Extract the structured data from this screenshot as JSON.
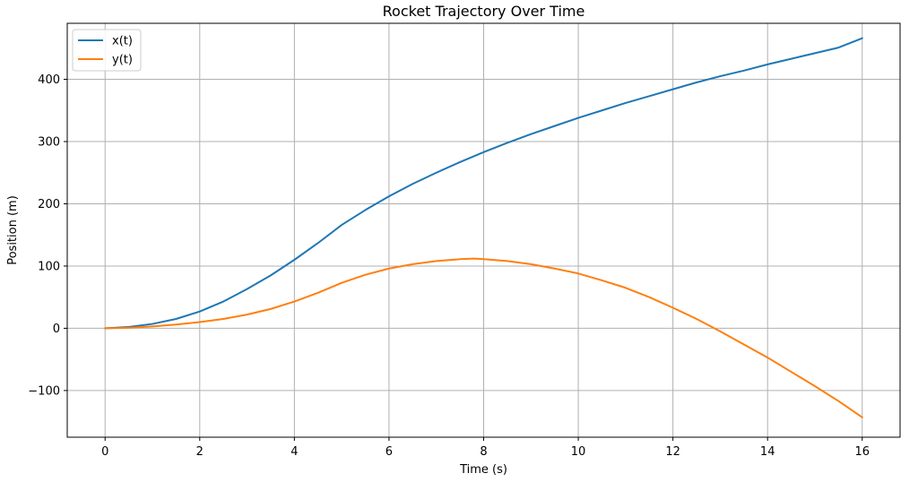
{
  "chart_data": {
    "type": "line",
    "title": "Rocket Trajectory Over Time",
    "xlabel": "Time (s)",
    "ylabel": "Position (m)",
    "xlim": [
      -0.8,
      16.8
    ],
    "ylim": [
      -175,
      490
    ],
    "xticks": [
      0,
      2,
      4,
      6,
      8,
      10,
      12,
      14,
      16
    ],
    "yticks": [
      -100,
      0,
      100,
      200,
      300,
      400
    ],
    "xtick_labels": [
      "0",
      "2",
      "4",
      "6",
      "8",
      "10",
      "12",
      "14",
      "16"
    ],
    "ytick_labels": [
      "−100",
      "0",
      "100",
      "200",
      "300",
      "400"
    ],
    "grid": true,
    "legend_position": "top-left",
    "series": [
      {
        "name": "x(t)",
        "color": "#1f77b4",
        "x": [
          0,
          0.5,
          1,
          1.5,
          2,
          2.5,
          3,
          3.5,
          4,
          4.5,
          5,
          5.5,
          6,
          6.5,
          7,
          7.5,
          8,
          8.5,
          9,
          9.5,
          10,
          10.5,
          11,
          11.5,
          12,
          12.5,
          13,
          13.5,
          14,
          14.5,
          15,
          15.5,
          16
        ],
        "values": [
          0,
          2,
          7,
          15,
          27,
          43,
          63,
          85,
          110,
          137,
          166,
          190,
          212,
          232,
          250,
          267,
          283,
          298,
          312,
          325,
          338,
          350,
          362,
          373,
          384,
          395,
          405,
          414,
          424,
          433,
          442,
          451,
          466
        ]
      },
      {
        "name": "y(t)",
        "color": "#ff7f0e",
        "x": [
          0,
          0.5,
          1,
          1.5,
          2,
          2.5,
          3,
          3.5,
          4,
          4.5,
          5,
          5.5,
          6,
          6.5,
          7,
          7.5,
          7.8,
          8,
          8.5,
          9,
          9.5,
          10,
          10.5,
          11,
          11.5,
          12,
          12.5,
          13,
          13.5,
          14,
          14.5,
          15,
          15.5,
          16
        ],
        "values": [
          0,
          0.8,
          3,
          6,
          10,
          15,
          22,
          31,
          43,
          57,
          73,
          86,
          96,
          103,
          108,
          111,
          112,
          111,
          108,
          103,
          96,
          88,
          77,
          65,
          50,
          33,
          15,
          -5,
          -26,
          -47,
          -70,
          -93,
          -117,
          -143
        ]
      }
    ]
  }
}
